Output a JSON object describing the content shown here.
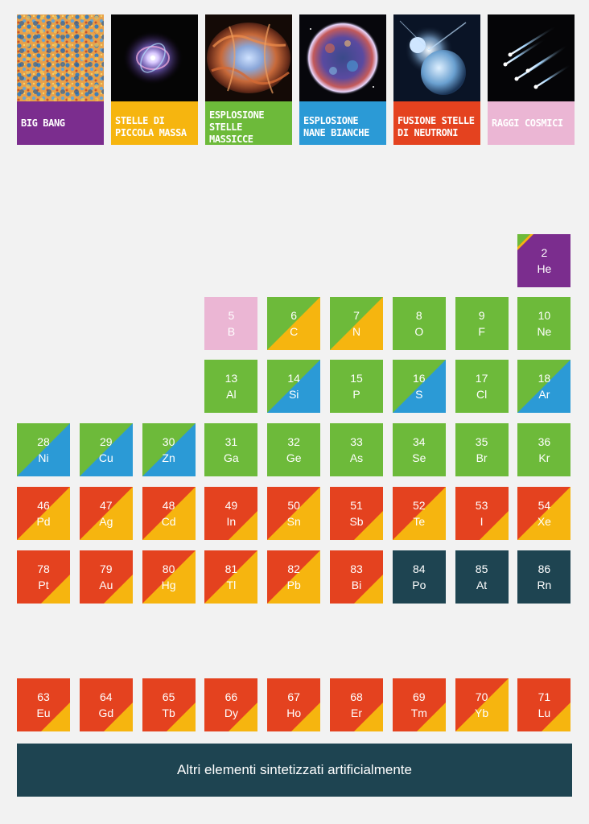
{
  "colors": {
    "bigbang": "#7b2d8e",
    "low_mass": "#f6b50f",
    "massive": "#6dba3a",
    "white_dwarf": "#2b9ad6",
    "neutron": "#e4421f",
    "cosmic": "#ebb6d4",
    "artificial": "#1e4451"
  },
  "legend": [
    {
      "key": "bigbang",
      "label": "Big Bang",
      "icon": "cmb-map-icon"
    },
    {
      "key": "low_mass",
      "label": "Stelle di piccola massa",
      "icon": "planetary-nebula-icon"
    },
    {
      "key": "massive",
      "label": "Esplosione stelle massicce",
      "icon": "supernova-remnant-icon"
    },
    {
      "key": "white_dwarf",
      "label": "Esplosione nane bianche",
      "icon": "white-dwarf-remnant-icon"
    },
    {
      "key": "neutron",
      "label": "Fusione stelle di neutroni",
      "icon": "neutron-star-merger-icon"
    },
    {
      "key": "cosmic",
      "label": "Raggi cosmici",
      "icon": "cosmic-rays-icon"
    }
  ],
  "elements": [
    {
      "z": "2",
      "sym": "He",
      "row": 0,
      "col": 8,
      "style": "bl",
      "c1": "bigbang",
      "c2": "massive",
      "c3": "low_mass"
    },
    {
      "z": "5",
      "sym": "B",
      "row": 1,
      "col": 3,
      "style": "solid",
      "c1": "cosmic"
    },
    {
      "z": "6",
      "sym": "C",
      "row": 1,
      "col": 4,
      "style": "diag",
      "c1": "massive",
      "c2": "low_mass"
    },
    {
      "z": "7",
      "sym": "N",
      "row": 1,
      "col": 5,
      "style": "diag",
      "c1": "massive",
      "c2": "low_mass"
    },
    {
      "z": "8",
      "sym": "O",
      "row": 1,
      "col": 6,
      "style": "solid",
      "c1": "massive"
    },
    {
      "z": "9",
      "sym": "F",
      "row": 1,
      "col": 7,
      "style": "solid",
      "c1": "massive"
    },
    {
      "z": "10",
      "sym": "Ne",
      "row": 1,
      "col": 8,
      "style": "solid",
      "c1": "massive"
    },
    {
      "z": "13",
      "sym": "Al",
      "row": 2,
      "col": 3,
      "style": "solid",
      "c1": "massive"
    },
    {
      "z": "14",
      "sym": "Si",
      "row": 2,
      "col": 4,
      "style": "diag",
      "c1": "massive",
      "c2": "white_dwarf"
    },
    {
      "z": "15",
      "sym": "P",
      "row": 2,
      "col": 5,
      "style": "solid",
      "c1": "massive"
    },
    {
      "z": "16",
      "sym": "S",
      "row": 2,
      "col": 6,
      "style": "diag",
      "c1": "massive",
      "c2": "white_dwarf"
    },
    {
      "z": "17",
      "sym": "Cl",
      "row": 2,
      "col": 7,
      "style": "solid",
      "c1": "massive"
    },
    {
      "z": "18",
      "sym": "Ar",
      "row": 2,
      "col": 8,
      "style": "diag",
      "c1": "massive",
      "c2": "white_dwarf"
    },
    {
      "z": "28",
      "sym": "Ni",
      "row": 3,
      "col": 0,
      "style": "diag",
      "c1": "massive",
      "c2": "white_dwarf"
    },
    {
      "z": "29",
      "sym": "Cu",
      "row": 3,
      "col": 1,
      "style": "diag",
      "c1": "massive",
      "c2": "white_dwarf"
    },
    {
      "z": "30",
      "sym": "Zn",
      "row": 3,
      "col": 2,
      "style": "diag",
      "c1": "massive",
      "c2": "white_dwarf"
    },
    {
      "z": "31",
      "sym": "Ga",
      "row": 3,
      "col": 3,
      "style": "solid",
      "c1": "massive"
    },
    {
      "z": "32",
      "sym": "Ge",
      "row": 3,
      "col": 4,
      "style": "solid",
      "c1": "massive"
    },
    {
      "z": "33",
      "sym": "As",
      "row": 3,
      "col": 5,
      "style": "solid",
      "c1": "massive"
    },
    {
      "z": "34",
      "sym": "Se",
      "row": 3,
      "col": 6,
      "style": "solid",
      "c1": "massive"
    },
    {
      "z": "35",
      "sym": "Br",
      "row": 3,
      "col": 7,
      "style": "solid",
      "c1": "massive"
    },
    {
      "z": "36",
      "sym": "Kr",
      "row": 3,
      "col": 8,
      "style": "solid",
      "c1": "massive"
    },
    {
      "z": "46",
      "sym": "Pd",
      "row": 4,
      "col": 0,
      "style": "diag",
      "c1": "neutron",
      "c2": "low_mass"
    },
    {
      "z": "47",
      "sym": "Ag",
      "row": 4,
      "col": 1,
      "style": "diag",
      "c1": "neutron",
      "c2": "low_mass"
    },
    {
      "z": "48",
      "sym": "Cd",
      "row": 4,
      "col": 2,
      "style": "diag",
      "c1": "neutron",
      "c2": "low_mass"
    },
    {
      "z": "49",
      "sym": "In",
      "row": 4,
      "col": 3,
      "style": "corner",
      "c1": "neutron",
      "c2": "low_mass"
    },
    {
      "z": "50",
      "sym": "Sn",
      "row": 4,
      "col": 4,
      "style": "diag",
      "c1": "neutron",
      "c2": "low_mass"
    },
    {
      "z": "51",
      "sym": "Sb",
      "row": 4,
      "col": 5,
      "style": "corner",
      "c1": "neutron",
      "c2": "low_mass"
    },
    {
      "z": "52",
      "sym": "Te",
      "row": 4,
      "col": 6,
      "style": "diag",
      "c1": "neutron",
      "c2": "low_mass"
    },
    {
      "z": "53",
      "sym": "I",
      "row": 4,
      "col": 7,
      "style": "corner",
      "c1": "neutron",
      "c2": "low_mass"
    },
    {
      "z": "54",
      "sym": "Xe",
      "row": 4,
      "col": 8,
      "style": "diag",
      "c1": "neutron",
      "c2": "low_mass"
    },
    {
      "z": "78",
      "sym": "Pt",
      "row": 5,
      "col": 0,
      "style": "corner",
      "c1": "neutron",
      "c2": "low_mass"
    },
    {
      "z": "79",
      "sym": "Au",
      "row": 5,
      "col": 1,
      "style": "corner",
      "c1": "neutron",
      "c2": "low_mass"
    },
    {
      "z": "80",
      "sym": "Hg",
      "row": 5,
      "col": 2,
      "style": "diag",
      "c1": "neutron",
      "c2": "low_mass"
    },
    {
      "z": "81",
      "sym": "Tl",
      "row": 5,
      "col": 3,
      "style": "diag",
      "c1": "neutron",
      "c2": "low_mass"
    },
    {
      "z": "82",
      "sym": "Pb",
      "row": 5,
      "col": 4,
      "style": "diag",
      "c1": "neutron",
      "c2": "low_mass"
    },
    {
      "z": "83",
      "sym": "Bi",
      "row": 5,
      "col": 5,
      "style": "corner",
      "c1": "neutron",
      "c2": "low_mass"
    },
    {
      "z": "84",
      "sym": "Po",
      "row": 5,
      "col": 6,
      "style": "solid",
      "c1": "artificial"
    },
    {
      "z": "85",
      "sym": "At",
      "row": 5,
      "col": 7,
      "style": "solid",
      "c1": "artificial"
    },
    {
      "z": "86",
      "sym": "Rn",
      "row": 5,
      "col": 8,
      "style": "solid",
      "c1": "artificial"
    },
    {
      "z": "63",
      "sym": "Eu",
      "row": 6,
      "col": 0,
      "style": "corner",
      "c1": "neutron",
      "c2": "low_mass"
    },
    {
      "z": "64",
      "sym": "Gd",
      "row": 6,
      "col": 1,
      "style": "corner",
      "c1": "neutron",
      "c2": "low_mass"
    },
    {
      "z": "65",
      "sym": "Tb",
      "row": 6,
      "col": 2,
      "style": "corner",
      "c1": "neutron",
      "c2": "low_mass"
    },
    {
      "z": "66",
      "sym": "Dy",
      "row": 6,
      "col": 3,
      "style": "corner",
      "c1": "neutron",
      "c2": "low_mass"
    },
    {
      "z": "67",
      "sym": "Ho",
      "row": 6,
      "col": 4,
      "style": "corner",
      "c1": "neutron",
      "c2": "low_mass"
    },
    {
      "z": "68",
      "sym": "Er",
      "row": 6,
      "col": 5,
      "style": "corner",
      "c1": "neutron",
      "c2": "low_mass"
    },
    {
      "z": "69",
      "sym": "Tm",
      "row": 6,
      "col": 6,
      "style": "corner",
      "c1": "neutron",
      "c2": "low_mass"
    },
    {
      "z": "70",
      "sym": "Yb",
      "row": 6,
      "col": 7,
      "style": "diag",
      "c1": "neutron",
      "c2": "low_mass"
    },
    {
      "z": "71",
      "sym": "Lu",
      "row": 6,
      "col": 8,
      "style": "corner",
      "c1": "neutron",
      "c2": "low_mass"
    }
  ],
  "footer": {
    "label": "Altri elementi sintetizzati artificialmente"
  }
}
